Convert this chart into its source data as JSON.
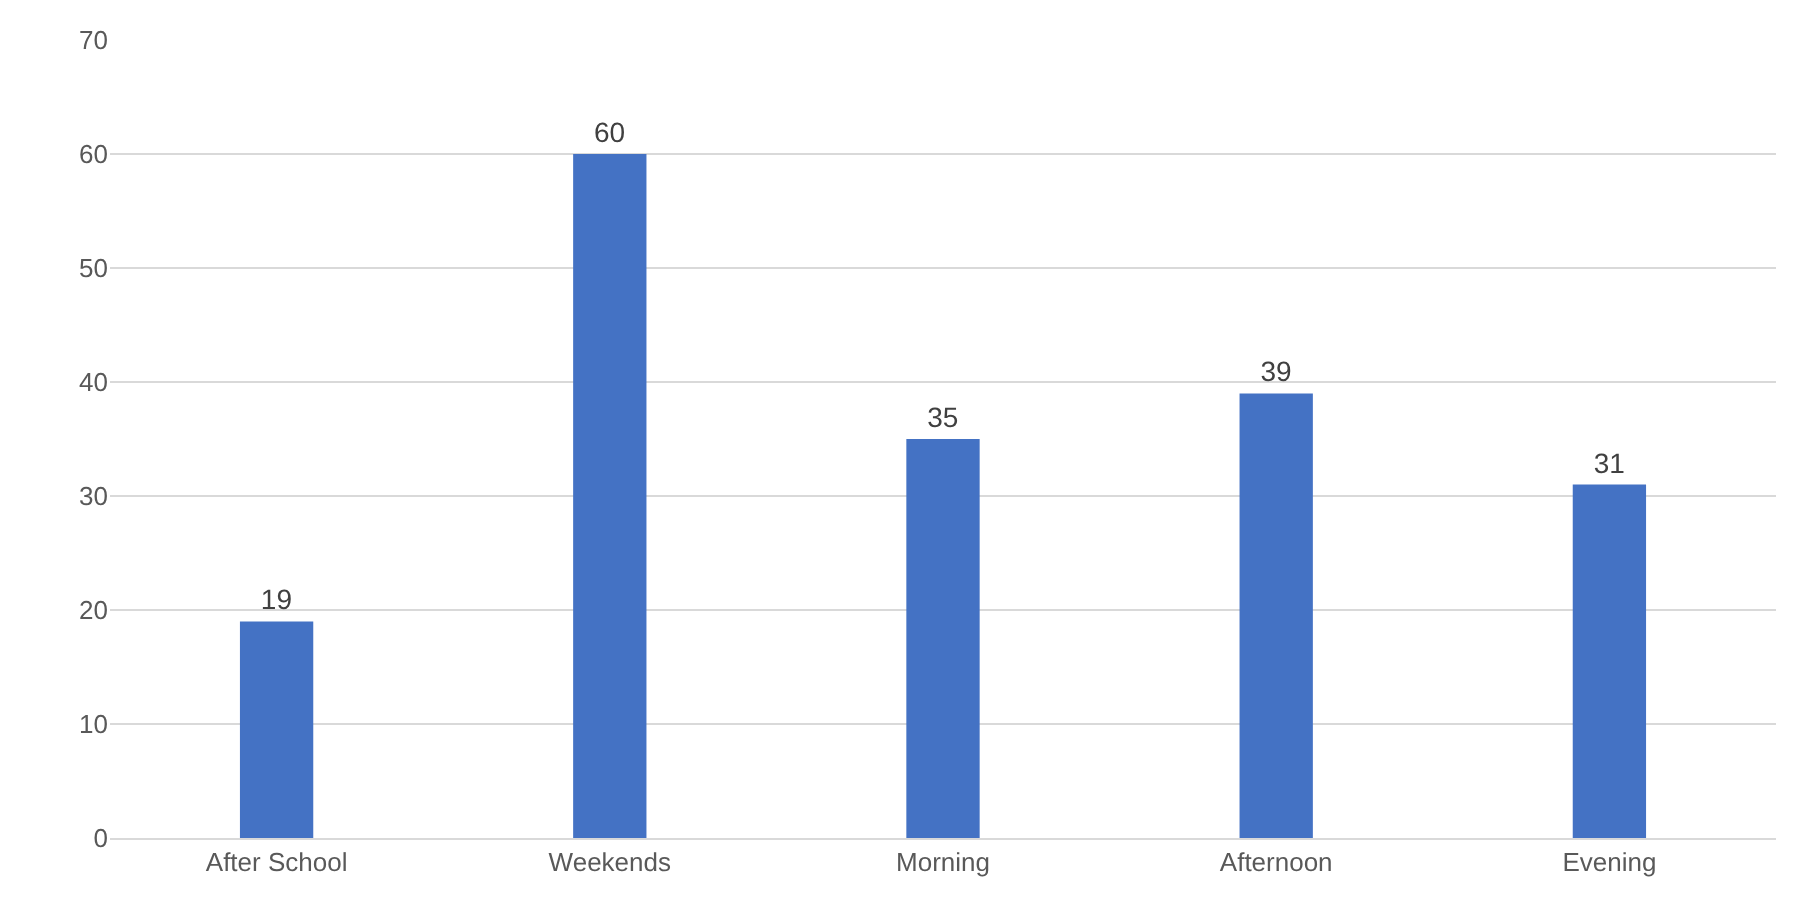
{
  "chart_data": {
    "type": "bar",
    "categories": [
      "After School",
      "Weekends",
      "Morning",
      "Afternoon",
      "Evening"
    ],
    "values": [
      19,
      60,
      35,
      39,
      31
    ],
    "color": "#4472c4",
    "ylim": [
      0,
      70
    ],
    "yticks": [
      0,
      10,
      20,
      30,
      40,
      50,
      60,
      70
    ],
    "grid": "y",
    "data_labels": true
  }
}
